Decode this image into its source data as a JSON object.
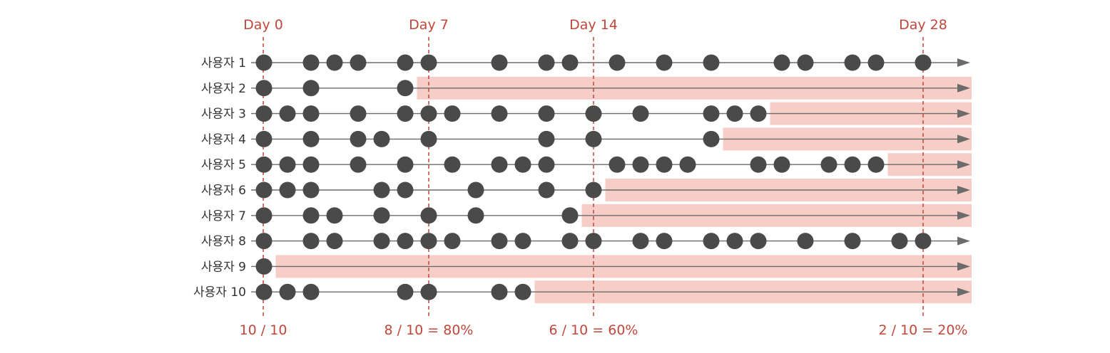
{
  "markers": [
    {
      "day": 0,
      "label": "Day 0",
      "retention": "10 / 10"
    },
    {
      "day": 7,
      "label": "Day 7",
      "retention": "8 / 10 = 80%"
    },
    {
      "day": 14,
      "label": "Day 14",
      "retention": "6 / 10 = 60%"
    },
    {
      "day": 28,
      "label": "Day 28",
      "retention": "2 / 10 = 20%"
    }
  ],
  "users": [
    {
      "label": "사용자 1",
      "visits": [
        0,
        2,
        3,
        4,
        6,
        7,
        10,
        12,
        13,
        15,
        17,
        19,
        22,
        23,
        25,
        26,
        28
      ],
      "churn_from": null
    },
    {
      "label": "사용자 2",
      "visits": [
        0,
        2,
        6
      ],
      "churn_from": 6.5
    },
    {
      "label": "사용자 3",
      "visits": [
        0,
        1,
        2,
        4,
        6,
        7,
        8,
        10,
        12,
        14,
        16,
        19,
        20,
        21
      ],
      "churn_from": 21.5
    },
    {
      "label": "사용자 4",
      "visits": [
        0,
        2,
        4,
        5,
        7,
        12,
        14,
        19
      ],
      "churn_from": 19.5
    },
    {
      "label": "사용자 5",
      "visits": [
        0,
        1,
        2,
        4,
        6,
        8,
        10,
        11,
        12,
        15,
        16,
        17,
        18,
        21,
        22,
        24,
        25,
        26
      ],
      "churn_from": 26.5
    },
    {
      "label": "사용자 6",
      "visits": [
        0,
        1,
        2,
        5,
        6,
        9,
        12,
        14
      ],
      "churn_from": 14.5
    },
    {
      "label": "사용자 7",
      "visits": [
        0,
        2,
        3,
        5,
        7,
        9,
        13
      ],
      "churn_from": 13.5
    },
    {
      "label": "사용자 8",
      "visits": [
        0,
        2,
        3,
        5,
        6,
        7,
        8,
        10,
        11,
        13,
        14,
        16,
        17,
        19,
        20,
        21,
        23,
        25,
        27,
        28
      ],
      "churn_from": null
    },
    {
      "label": "사용자 9",
      "visits": [
        0
      ],
      "churn_from": 0.5
    },
    {
      "label": "사용자 10",
      "visits": [
        0,
        1,
        2,
        6,
        7,
        10,
        11
      ],
      "churn_from": 11.5
    }
  ],
  "colors": {
    "marker": "#c0473b",
    "churn": "#f6c9c1",
    "dot": "#4a4a4a",
    "line": "#6b6b6b"
  }
}
